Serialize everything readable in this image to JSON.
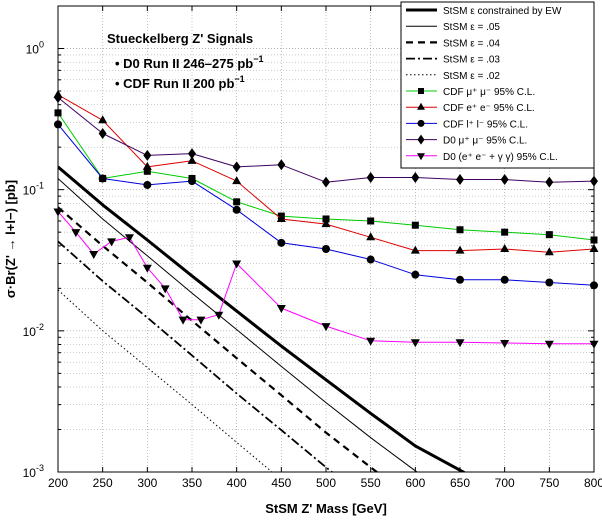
{
  "chart_data": {
    "type": "line",
    "xlabel": "StSM Z' Mass [GeV]",
    "ylabel": "σ·Br(Z' → l+l−) [pb]",
    "x_scale": "linear",
    "y_scale": "log",
    "xlim": [
      200,
      800
    ],
    "ylim": [
      0.001,
      2
    ],
    "x_ticks": [
      "200",
      "250",
      "300",
      "350",
      "400",
      "450",
      "500",
      "550",
      "600",
      "650",
      "700",
      "750",
      "800"
    ],
    "y_ticks": [
      {
        "value": 1,
        "label": "10",
        "exp": "0"
      },
      {
        "value": 0.1,
        "label": "10",
        "exp": "-1"
      },
      {
        "value": 0.01,
        "label": "10",
        "exp": "-2"
      },
      {
        "value": 0.001,
        "label": "10",
        "exp": "-3"
      }
    ],
    "grid": true,
    "legend_position": "top-right",
    "annotations": {
      "title": "Stueckelberg Z' Signals",
      "line1": "• D0 Run II 246–275 pb",
      "line1_sup": "−1",
      "line2": "• CDF Run II 200 pb",
      "line2_sup": "−1"
    },
    "series": [
      {
        "name": "StSM ε  constrained by EW",
        "color": "#000000",
        "width": 3,
        "dash": "",
        "marker": "none",
        "x": [
          200,
          250,
          300,
          350,
          400,
          450,
          500,
          550,
          600,
          650,
          700
        ],
        "y": [
          0.145,
          0.078,
          0.044,
          0.0245,
          0.0138,
          0.0078,
          0.0045,
          0.0026,
          0.00153,
          0.00103,
          0.00068
        ]
      },
      {
        "name": "StSM ε = .05",
        "color": "#000000",
        "width": 1,
        "dash": "",
        "marker": "none",
        "x": [
          200,
          250,
          300,
          350,
          400,
          450,
          500,
          550,
          600,
          640
        ],
        "y": [
          0.12,
          0.062,
          0.034,
          0.0185,
          0.0102,
          0.0056,
          0.0031,
          0.00175,
          0.00102,
          0.00069
        ]
      },
      {
        "name": "StSM ε = .04",
        "color": "#000000",
        "width": 2.2,
        "dash": "7,5",
        "marker": "none",
        "x": [
          200,
          250,
          300,
          350,
          400,
          450,
          500,
          550,
          600
        ],
        "y": [
          0.075,
          0.04,
          0.022,
          0.0118,
          0.0064,
          0.0035,
          0.0019,
          0.00108,
          0.00062
        ]
      },
      {
        "name": "StSM ε = .03",
        "color": "#000000",
        "width": 1.8,
        "dash": "9,3,2,3",
        "marker": "none",
        "x": [
          200,
          250,
          300,
          350,
          400,
          450,
          500,
          550
        ],
        "y": [
          0.043,
          0.0225,
          0.0124,
          0.0067,
          0.0036,
          0.00198,
          0.00108,
          0.0006
        ]
      },
      {
        "name": "StSM ε = .02",
        "color": "#000000",
        "width": 1,
        "dash": "1.5,2.5",
        "marker": "none",
        "x": [
          200,
          250,
          300,
          350,
          400,
          450
        ],
        "y": [
          0.0195,
          0.01,
          0.0055,
          0.003,
          0.00162,
          0.00088
        ]
      },
      {
        "name": "CDF μ⁺ μ⁻    95% C.L.",
        "color": "#00cc00",
        "width": 1,
        "dash": "",
        "marker": "square",
        "x": [
          200,
          250,
          300,
          350,
          400,
          450,
          500,
          550,
          600,
          650,
          700,
          750,
          800
        ],
        "y": [
          0.35,
          0.12,
          0.135,
          0.12,
          0.082,
          0.065,
          0.062,
          0.06,
          0.056,
          0.052,
          0.05,
          0.048,
          0.044
        ]
      },
      {
        "name": "CDF e⁺ e⁻    95% C.L.",
        "color": "#dd0000",
        "width": 1,
        "dash": "",
        "marker": "triangle-up",
        "x": [
          200,
          250,
          300,
          350,
          400,
          450,
          500,
          550,
          600,
          650,
          700,
          750,
          800
        ],
        "y": [
          0.47,
          0.31,
          0.145,
          0.16,
          0.115,
          0.062,
          0.057,
          0.046,
          0.037,
          0.037,
          0.038,
          0.036,
          0.038
        ]
      },
      {
        "name": "CDF l⁺ l⁻      95% C.L.",
        "color": "#0000dd",
        "width": 1,
        "dash": "",
        "marker": "circle",
        "x": [
          200,
          250,
          300,
          350,
          400,
          450,
          500,
          550,
          600,
          650,
          700,
          750,
          800
        ],
        "y": [
          0.29,
          0.12,
          0.108,
          0.115,
          0.072,
          0.042,
          0.038,
          0.032,
          0.025,
          0.023,
          0.023,
          0.022,
          0.021
        ]
      },
      {
        "name": "D0 μ⁺ μ⁻      95% C.L.",
        "color": "#400060",
        "width": 1,
        "dash": "",
        "marker": "diamond",
        "x": [
          200,
          250,
          300,
          350,
          400,
          450,
          500,
          550,
          600,
          650,
          700,
          750,
          800
        ],
        "y": [
          0.45,
          0.25,
          0.175,
          0.18,
          0.145,
          0.15,
          0.113,
          0.122,
          0.122,
          0.118,
          0.118,
          0.113,
          0.115
        ]
      },
      {
        "name": "D0 (e⁺ e⁻ + γ γ)  95% C.L.",
        "color": "#ff00ff",
        "width": 1,
        "dash": "",
        "marker": "triangle-down",
        "x": [
          200,
          220,
          240,
          260,
          280,
          300,
          320,
          340,
          360,
          380,
          400,
          450,
          500,
          550,
          600,
          650,
          700,
          750,
          800
        ],
        "y": [
          0.07,
          0.05,
          0.035,
          0.043,
          0.046,
          0.028,
          0.02,
          0.012,
          0.012,
          0.013,
          0.03,
          0.0145,
          0.0108,
          0.0085,
          0.0083,
          0.0083,
          0.0082,
          0.0081,
          0.0081
        ]
      }
    ]
  }
}
